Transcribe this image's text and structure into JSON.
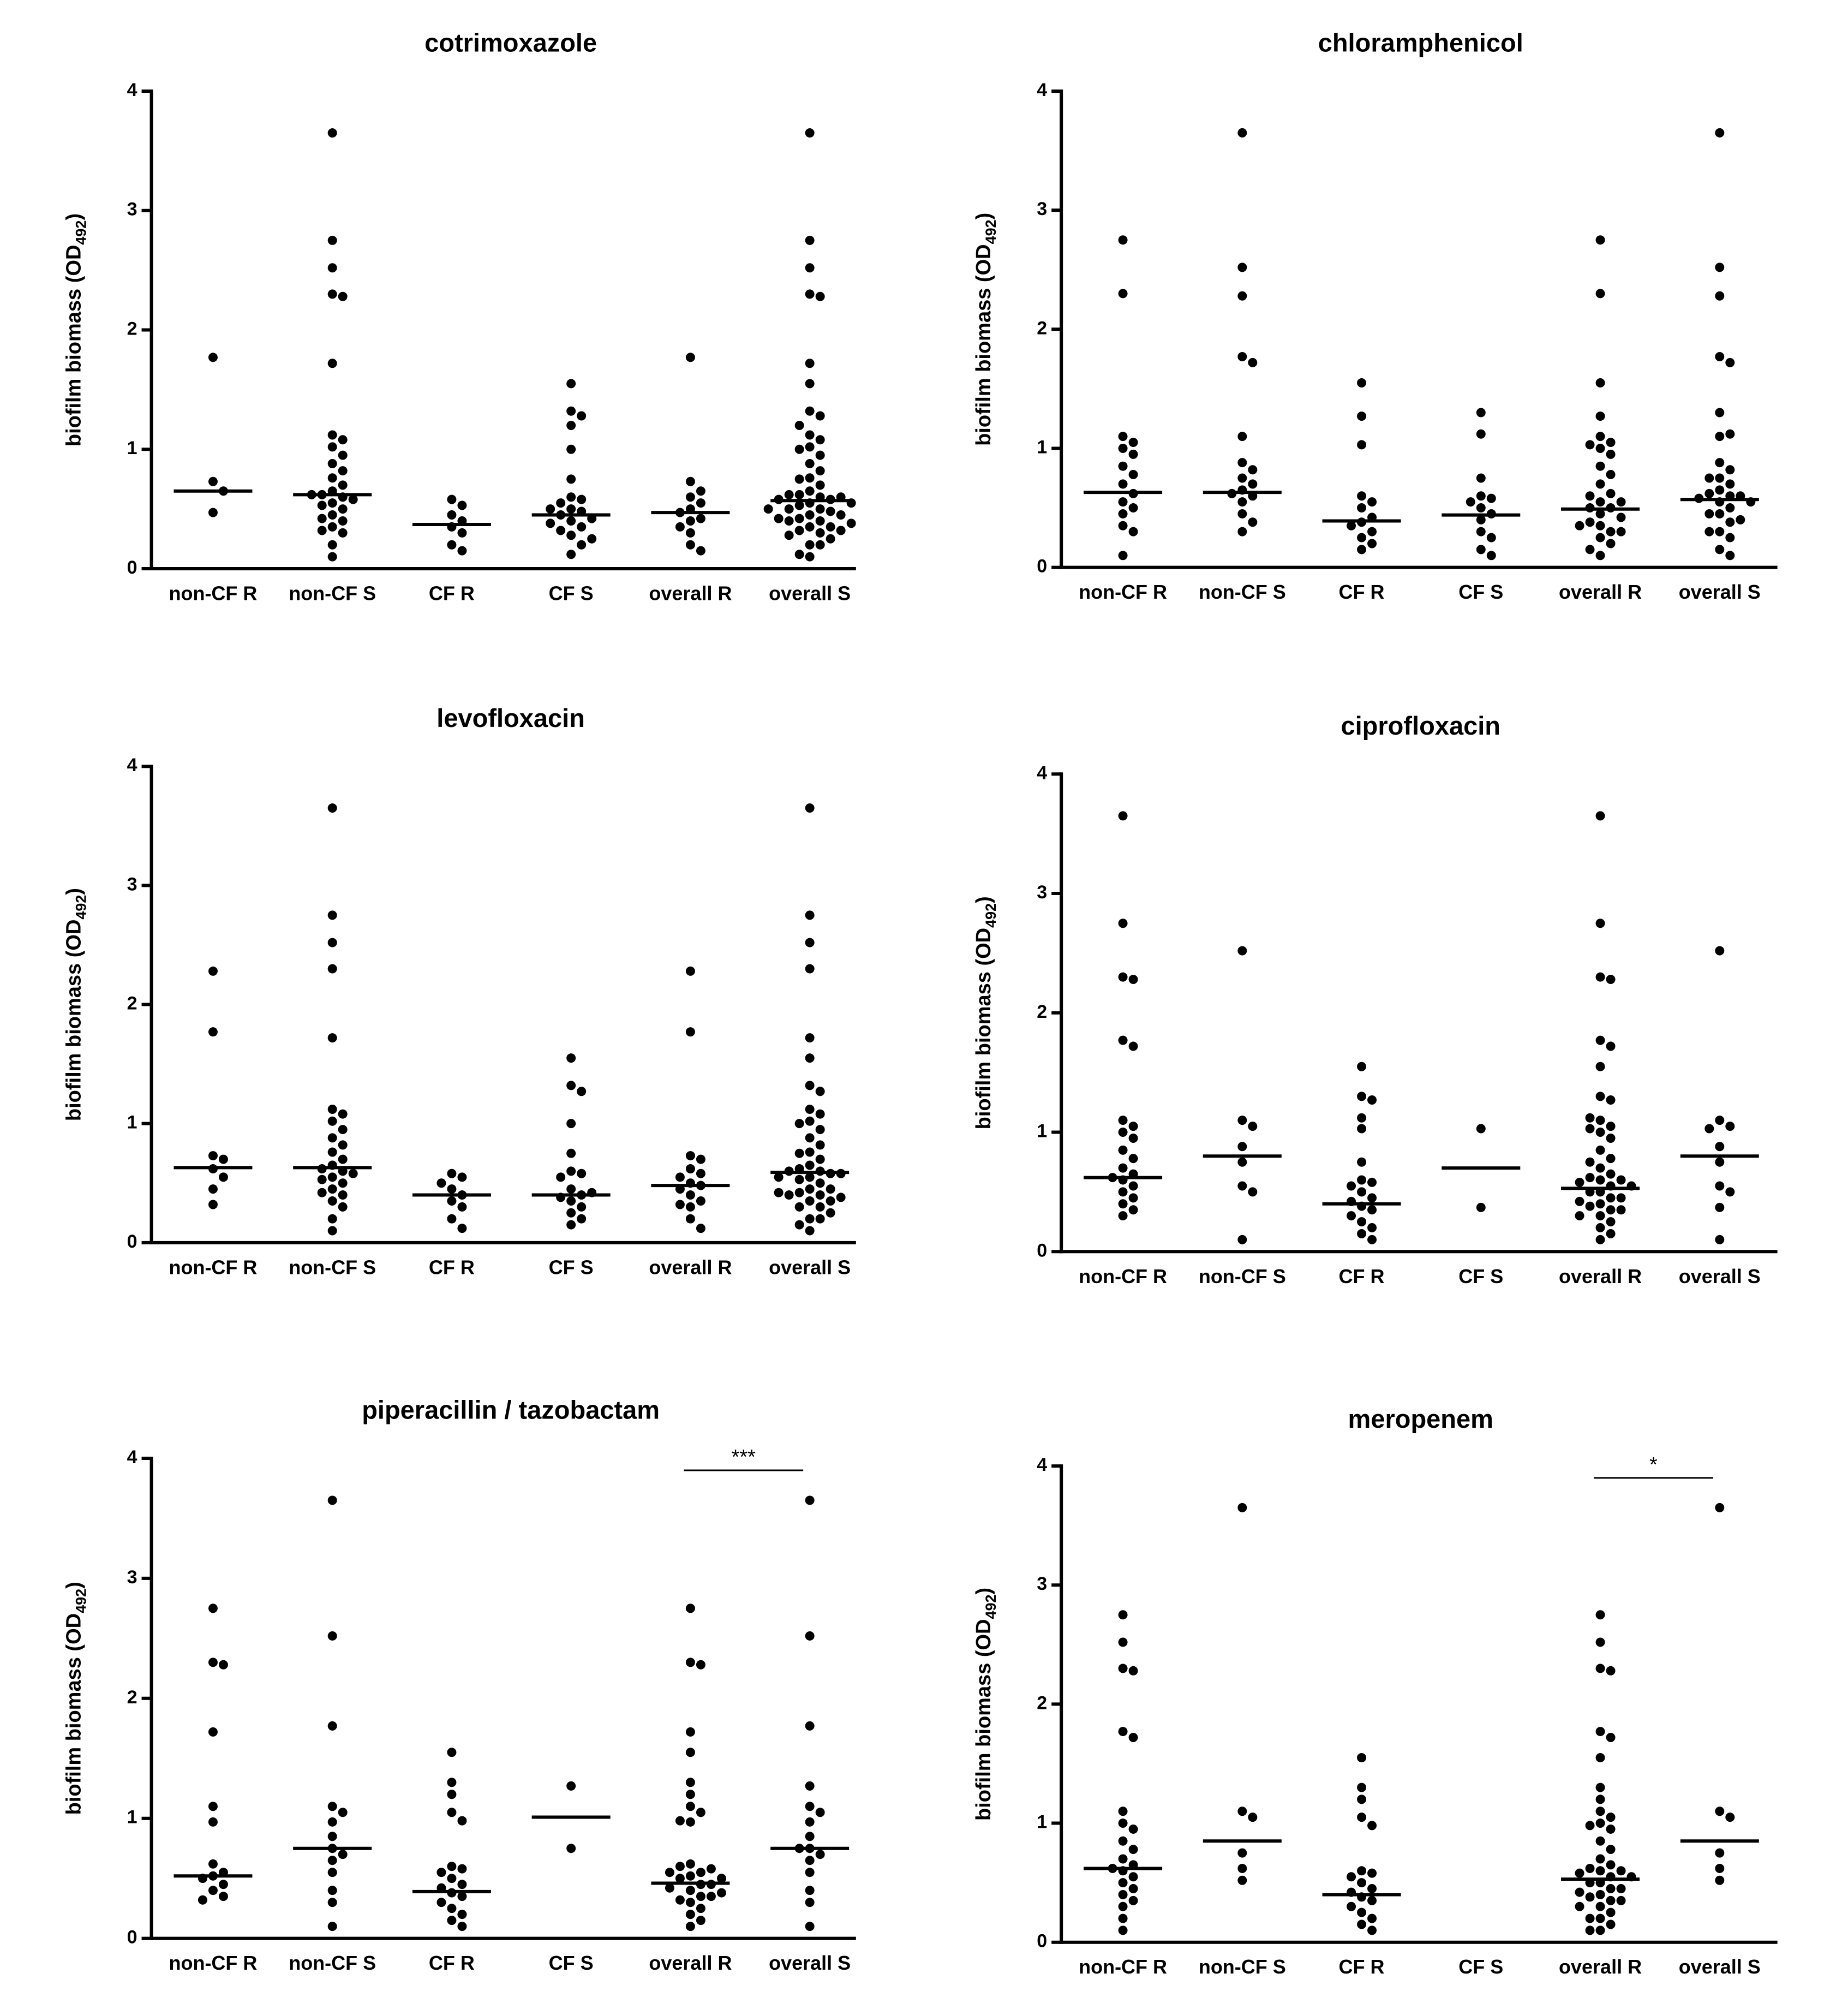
{
  "chart_data": [
    {
      "type": "dotplot",
      "title": "cotrimoxazole",
      "y_label": [
        "biofilm biomass (OD",
        "492",
        ")"
      ],
      "categories": [
        "non-CF R",
        "non-CF S",
        "CF R",
        "CF S",
        "overall R",
        "overall S"
      ],
      "values": [
        [
          1.77,
          0.73,
          0.65,
          0.47
        ],
        [
          3.65,
          2.75,
          2.52,
          2.3,
          2.28,
          1.72,
          1.12,
          1.08,
          1.02,
          0.95,
          0.88,
          0.82,
          0.76,
          0.7,
          0.65,
          0.62,
          0.6,
          0.58,
          0.55,
          0.5,
          0.45,
          0.4,
          0.35,
          0.3,
          0.2,
          0.1,
          0.62,
          0.53,
          0.42,
          0.32
        ],
        [
          0.58,
          0.53,
          0.45,
          0.4,
          0.35,
          0.3,
          0.2,
          0.15
        ],
        [
          1.55,
          1.32,
          1.28,
          1.2,
          1.0,
          0.75,
          0.6,
          0.58,
          0.55,
          0.5,
          0.48,
          0.45,
          0.42,
          0.4,
          0.35,
          0.32,
          0.28,
          0.2,
          0.12,
          0.5,
          0.38,
          0.25
        ],
        [
          1.77,
          0.73,
          0.65,
          0.6,
          0.55,
          0.5,
          0.47,
          0.42,
          0.4,
          0.35,
          0.3,
          0.2,
          0.15
        ],
        [
          3.65,
          2.75,
          2.52,
          2.3,
          2.28,
          1.72,
          1.12,
          1.08,
          1.02,
          0.95,
          0.88,
          0.82,
          0.76,
          0.7,
          0.65,
          0.62,
          0.6,
          0.58,
          0.55,
          0.5,
          0.45,
          0.4,
          0.35,
          0.3,
          0.2,
          0.1,
          0.62,
          0.53,
          0.42,
          0.32,
          1.55,
          1.32,
          1.28,
          1.2,
          1.0,
          0.75,
          0.6,
          0.58,
          0.55,
          0.5,
          0.48,
          0.45,
          0.42,
          0.4,
          0.35,
          0.32,
          0.28,
          0.2,
          0.12,
          0.5,
          0.38,
          0.25
        ]
      ],
      "medians": [
        0.65,
        0.62,
        0.37,
        0.45,
        0.47,
        0.57
      ],
      "ylim": [
        0,
        4
      ],
      "yticks": [
        0,
        1,
        2,
        3,
        4
      ],
      "color": "#000000"
    },
    {
      "type": "dotplot",
      "title": "chloramphenicol",
      "y_label": [
        "biofilm biomass (OD",
        "492",
        ")"
      ],
      "categories": [
        "non-CF R",
        "non-CF S",
        "CF R",
        "CF S",
        "overall R",
        "overall S"
      ],
      "values": [
        [
          2.75,
          2.3,
          1.1,
          1.05,
          1.0,
          0.95,
          0.85,
          0.78,
          0.7,
          0.62,
          0.55,
          0.5,
          0.45,
          0.35,
          0.3,
          0.1
        ],
        [
          3.65,
          2.52,
          2.28,
          1.77,
          1.72,
          1.1,
          0.88,
          0.82,
          0.75,
          0.7,
          0.65,
          0.62,
          0.6,
          0.55,
          0.45,
          0.38,
          0.3
        ],
        [
          1.55,
          1.27,
          1.03,
          0.6,
          0.55,
          0.5,
          0.42,
          0.38,
          0.35,
          0.3,
          0.25,
          0.2,
          0.15
        ],
        [
          1.3,
          1.12,
          0.75,
          0.6,
          0.58,
          0.55,
          0.5,
          0.45,
          0.4,
          0.3,
          0.25,
          0.15,
          0.1
        ],
        [
          2.75,
          2.3,
          1.1,
          1.05,
          1.0,
          0.95,
          0.85,
          0.78,
          0.7,
          0.62,
          0.55,
          0.5,
          0.45,
          0.35,
          0.3,
          0.1,
          1.55,
          1.27,
          1.03,
          0.6,
          0.55,
          0.5,
          0.42,
          0.38,
          0.35,
          0.3,
          0.25,
          0.2,
          0.15
        ],
        [
          3.65,
          2.52,
          2.28,
          1.77,
          1.72,
          1.1,
          0.88,
          0.82,
          0.75,
          0.7,
          0.65,
          0.62,
          0.6,
          0.55,
          0.45,
          0.38,
          0.3,
          1.3,
          1.12,
          0.75,
          0.6,
          0.58,
          0.55,
          0.5,
          0.45,
          0.4,
          0.3,
          0.25,
          0.15,
          0.1
        ]
      ],
      "medians": [
        0.63,
        0.63,
        0.39,
        0.44,
        0.49,
        0.57
      ],
      "ylim": [
        0,
        4
      ],
      "yticks": [
        0,
        1,
        2,
        3,
        4
      ],
      "color": "#000000"
    },
    {
      "type": "dotplot",
      "title": "levofloxacin",
      "y_label": [
        "biofilm biomass (OD",
        "492",
        ")"
      ],
      "categories": [
        "non-CF R",
        "non-CF S",
        "CF R",
        "CF S",
        "overall R",
        "overall S"
      ],
      "values": [
        [
          2.28,
          1.77,
          0.73,
          0.7,
          0.62,
          0.55,
          0.45,
          0.32
        ],
        [
          3.65,
          2.75,
          2.52,
          2.3,
          1.72,
          1.12,
          1.08,
          1.02,
          0.95,
          0.88,
          0.82,
          0.76,
          0.7,
          0.65,
          0.62,
          0.6,
          0.58,
          0.55,
          0.5,
          0.45,
          0.4,
          0.35,
          0.3,
          0.2,
          0.1,
          0.53,
          0.42
        ],
        [
          0.58,
          0.55,
          0.5,
          0.45,
          0.4,
          0.35,
          0.3,
          0.2,
          0.12
        ],
        [
          1.55,
          1.32,
          1.27,
          1.0,
          0.75,
          0.6,
          0.58,
          0.55,
          0.45,
          0.4,
          0.38,
          0.35,
          0.3,
          0.25,
          0.2,
          0.15,
          0.42
        ],
        [
          2.28,
          1.77,
          0.73,
          0.7,
          0.62,
          0.58,
          0.55,
          0.5,
          0.48,
          0.45,
          0.4,
          0.35,
          0.32,
          0.3,
          0.2,
          0.12
        ],
        [
          3.65,
          2.75,
          2.52,
          2.3,
          1.72,
          1.12,
          1.08,
          1.02,
          0.95,
          0.88,
          0.82,
          0.76,
          0.7,
          0.65,
          0.62,
          0.6,
          0.58,
          0.55,
          0.5,
          0.45,
          0.4,
          0.35,
          0.3,
          0.2,
          0.1,
          0.53,
          0.42,
          1.55,
          1.32,
          1.27,
          1.0,
          0.75,
          0.6,
          0.58,
          0.55,
          0.45,
          0.4,
          0.38,
          0.35,
          0.3,
          0.25,
          0.2,
          0.15,
          0.42
        ]
      ],
      "medians": [
        0.63,
        0.63,
        0.4,
        0.4,
        0.48,
        0.59
      ],
      "ylim": [
        0,
        4
      ],
      "yticks": [
        0,
        1,
        2,
        3,
        4
      ],
      "color": "#000000"
    },
    {
      "type": "dotplot",
      "title": "ciprofloxacin",
      "y_label": [
        "biofilm biomass (OD",
        "492",
        ")"
      ],
      "categories": [
        "non-CF R",
        "non-CF S",
        "CF R",
        "CF S",
        "overall R",
        "overall S"
      ],
      "values": [
        [
          3.65,
          2.75,
          2.3,
          2.28,
          1.77,
          1.72,
          1.1,
          1.05,
          1.0,
          0.95,
          0.85,
          0.78,
          0.7,
          0.65,
          0.62,
          0.6,
          0.55,
          0.5,
          0.45,
          0.4,
          0.35,
          0.3
        ],
        [
          2.52,
          1.1,
          1.05,
          0.88,
          0.75,
          0.55,
          0.5,
          0.1
        ],
        [
          1.55,
          1.3,
          1.27,
          1.12,
          1.03,
          0.75,
          0.6,
          0.58,
          0.55,
          0.5,
          0.45,
          0.42,
          0.38,
          0.35,
          0.3,
          0.25,
          0.2,
          0.15,
          0.1
        ],
        [
          1.03,
          0.37
        ],
        [
          3.65,
          2.75,
          2.3,
          2.28,
          1.77,
          1.72,
          1.1,
          1.05,
          1.0,
          0.95,
          0.85,
          0.78,
          0.7,
          0.65,
          0.62,
          0.6,
          0.55,
          0.5,
          0.45,
          0.4,
          0.35,
          0.3,
          1.55,
          1.3,
          1.27,
          1.12,
          1.03,
          0.75,
          0.6,
          0.58,
          0.55,
          0.5,
          0.45,
          0.42,
          0.38,
          0.35,
          0.3,
          0.25,
          0.2,
          0.15,
          0.1
        ],
        [
          2.52,
          1.1,
          1.05,
          0.88,
          0.75,
          0.55,
          0.5,
          0.1,
          1.03,
          0.37
        ]
      ],
      "medians": [
        0.62,
        0.8,
        0.4,
        0.7,
        0.53,
        0.8
      ],
      "ylim": [
        0,
        4
      ],
      "yticks": [
        0,
        1,
        2,
        3,
        4
      ],
      "color": "#000000"
    },
    {
      "type": "dotplot",
      "title": "piperacillin / tazobactam",
      "y_label": [
        "biofilm biomass (OD",
        "492",
        ")"
      ],
      "categories": [
        "non-CF R",
        "non-CF S",
        "CF R",
        "CF S",
        "overall R",
        "overall S"
      ],
      "values": [
        [
          2.75,
          2.3,
          2.28,
          1.72,
          1.1,
          0.97,
          0.62,
          0.55,
          0.52,
          0.5,
          0.45,
          0.4,
          0.35,
          0.32
        ],
        [
          3.65,
          2.52,
          1.77,
          1.1,
          1.05,
          0.97,
          0.85,
          0.75,
          0.7,
          0.65,
          0.55,
          0.4,
          0.3,
          0.1
        ],
        [
          1.55,
          1.3,
          1.2,
          1.05,
          0.98,
          0.6,
          0.58,
          0.55,
          0.5,
          0.45,
          0.42,
          0.38,
          0.35,
          0.3,
          0.25,
          0.2,
          0.15,
          0.1
        ],
        [
          1.27,
          0.75
        ],
        [
          2.75,
          2.3,
          2.28,
          1.72,
          1.1,
          0.97,
          0.62,
          0.55,
          0.52,
          0.5,
          0.45,
          0.4,
          0.35,
          0.32,
          1.55,
          1.3,
          1.2,
          1.05,
          0.98,
          0.6,
          0.58,
          0.55,
          0.5,
          0.45,
          0.42,
          0.38,
          0.35,
          0.3,
          0.25,
          0.2,
          0.15,
          0.1
        ],
        [
          3.65,
          2.52,
          1.77,
          1.1,
          1.05,
          0.97,
          0.85,
          0.75,
          0.7,
          0.65,
          0.55,
          0.4,
          0.3,
          0.1,
          1.27,
          0.75
        ]
      ],
      "medians": [
        0.52,
        0.75,
        0.39,
        1.01,
        0.46,
        0.75
      ],
      "ylim": [
        0,
        4
      ],
      "yticks": [
        0,
        1,
        2,
        3,
        4
      ],
      "color": "#000000",
      "annotations": [
        {
          "text": "***",
          "from": 4,
          "to": 5,
          "y": 3.9
        }
      ]
    },
    {
      "type": "dotplot",
      "title": "meropenem",
      "y_label": [
        "biofilm biomass (OD",
        "492",
        ")"
      ],
      "categories": [
        "non-CF R",
        "non-CF S",
        "CF R",
        "CF S",
        "overall R",
        "overall S"
      ],
      "values": [
        [
          2.75,
          2.52,
          2.3,
          2.28,
          1.77,
          1.72,
          1.1,
          1.0,
          0.95,
          0.85,
          0.78,
          0.7,
          0.65,
          0.62,
          0.6,
          0.55,
          0.5,
          0.45,
          0.4,
          0.35,
          0.3,
          0.2,
          0.1
        ],
        [
          3.65,
          1.1,
          1.05,
          0.75,
          0.62,
          0.52
        ],
        [
          1.55,
          1.3,
          1.2,
          1.05,
          0.98,
          0.6,
          0.58,
          0.55,
          0.5,
          0.45,
          0.42,
          0.38,
          0.35,
          0.3,
          0.25,
          0.2,
          0.15,
          0.1
        ],
        [],
        [
          2.75,
          2.52,
          2.3,
          2.28,
          1.77,
          1.72,
          1.1,
          1.0,
          0.95,
          0.85,
          0.78,
          0.7,
          0.65,
          0.62,
          0.6,
          0.55,
          0.5,
          0.45,
          0.4,
          0.35,
          0.3,
          0.2,
          0.1,
          1.55,
          1.3,
          1.2,
          1.05,
          0.98,
          0.6,
          0.58,
          0.55,
          0.5,
          0.45,
          0.42,
          0.38,
          0.35,
          0.3,
          0.25,
          0.2,
          0.15,
          0.1
        ],
        [
          3.65,
          1.1,
          1.05,
          0.75,
          0.62,
          0.52
        ]
      ],
      "medians": [
        0.62,
        0.85,
        0.4,
        null,
        0.53,
        0.85
      ],
      "ylim": [
        0,
        4
      ],
      "yticks": [
        0,
        1,
        2,
        3,
        4
      ],
      "color": "#000000",
      "annotations": [
        {
          "text": "*",
          "from": 4,
          "to": 5,
          "y": 3.9
        }
      ]
    }
  ]
}
